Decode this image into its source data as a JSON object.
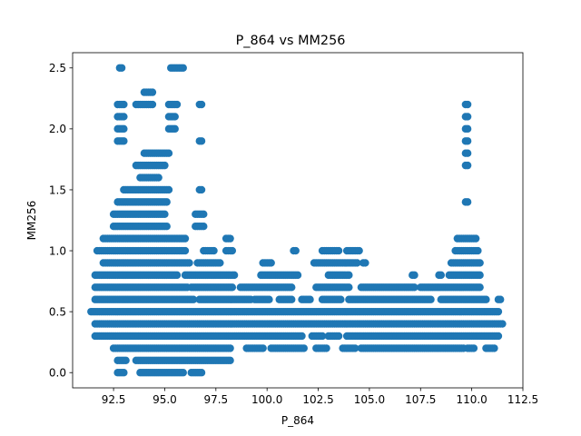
{
  "chart_data": {
    "type": "scatter",
    "title": "P_864 vs MM256",
    "xlabel": "P_864",
    "ylabel": "MM256",
    "xlim": [
      90.5,
      112.5
    ],
    "ylim": [
      -0.125,
      2.625
    ],
    "xticks": [
      92.5,
      95.0,
      97.5,
      100.0,
      102.5,
      105.0,
      107.5,
      110.0,
      112.5
    ],
    "xtick_labels": [
      "92.5",
      "95.0",
      "97.5",
      "100.0",
      "102.5",
      "105.0",
      "107.5",
      "110.0",
      "112.5"
    ],
    "yticks": [
      0.0,
      0.5,
      1.0,
      1.5,
      2.0,
      2.5
    ],
    "ytick_labels": [
      "0.0",
      "0.5",
      "1.0",
      "1.5",
      "2.0",
      "2.5"
    ],
    "grid": false,
    "marker_color": "#1f77b4",
    "x_step": 0.1,
    "bands": [
      {
        "y": 0.0,
        "ranges": [
          [
            92.7,
            93.0
          ],
          [
            93.8,
            95.9
          ],
          [
            96.3,
            96.8
          ]
        ]
      },
      {
        "y": 0.1,
        "ranges": [
          [
            92.7,
            93.1
          ],
          [
            93.6,
            98.2
          ]
        ]
      },
      {
        "y": 0.2,
        "ranges": [
          [
            92.5,
            98.2
          ],
          [
            99.0,
            99.8
          ],
          [
            100.2,
            101.8
          ],
          [
            102.4,
            102.9
          ],
          [
            103.7,
            104.3
          ],
          [
            104.6,
            109.6
          ],
          [
            109.8,
            110.1
          ],
          [
            110.7,
            111.1
          ]
        ]
      },
      {
        "y": 0.3,
        "ranges": [
          [
            91.6,
            101.7
          ],
          [
            102.2,
            102.7
          ],
          [
            103.0,
            103.5
          ],
          [
            103.9,
            111.3
          ]
        ]
      },
      {
        "y": 0.4,
        "ranges": [
          [
            91.6,
            111.5
          ]
        ]
      },
      {
        "y": 0.5,
        "ranges": [
          [
            91.4,
            111.3
          ]
        ]
      },
      {
        "y": 0.6,
        "ranges": [
          [
            91.6,
            96.4
          ],
          [
            96.7,
            99.2
          ],
          [
            99.4,
            100.1
          ],
          [
            100.6,
            101.2
          ],
          [
            101.7,
            102.1
          ],
          [
            102.7,
            103.6
          ],
          [
            104.0,
            108.0
          ],
          [
            108.5,
            110.7
          ],
          [
            111.3,
            111.4
          ]
        ]
      },
      {
        "y": 0.7,
        "ranges": [
          [
            91.6,
            96.1
          ],
          [
            96.3,
            98.3
          ],
          [
            98.7,
            101.2
          ],
          [
            102.4,
            104.0
          ],
          [
            104.6,
            107.2
          ],
          [
            107.5,
            110.4
          ]
        ]
      },
      {
        "y": 0.8,
        "ranges": [
          [
            91.6,
            95.6
          ],
          [
            96.0,
            98.4
          ],
          [
            99.7,
            101.5
          ],
          [
            103.0,
            104.0
          ],
          [
            107.1,
            107.2
          ],
          [
            108.4,
            108.5
          ],
          [
            108.9,
            110.4
          ]
        ]
      },
      {
        "y": 0.9,
        "ranges": [
          [
            92.0,
            96.2
          ],
          [
            96.6,
            97.7
          ],
          [
            99.8,
            100.2
          ],
          [
            102.3,
            104.4
          ],
          [
            104.7,
            104.8
          ],
          [
            109.0,
            110.4
          ]
        ]
      },
      {
        "y": 1.0,
        "ranges": [
          [
            91.7,
            96.0
          ],
          [
            96.9,
            97.4
          ],
          [
            98.0,
            98.3
          ],
          [
            101.3,
            101.4
          ],
          [
            102.7,
            103.5
          ],
          [
            103.9,
            104.5
          ],
          [
            109.2,
            110.3
          ]
        ]
      },
      {
        "y": 1.1,
        "ranges": [
          [
            92.0,
            96.0
          ],
          [
            98.0,
            98.2
          ],
          [
            109.3,
            110.2
          ]
        ]
      },
      {
        "y": 1.2,
        "ranges": [
          [
            92.5,
            95.1
          ],
          [
            96.5,
            96.9
          ]
        ]
      },
      {
        "y": 1.3,
        "ranges": [
          [
            92.5,
            95.0
          ],
          [
            96.5,
            96.9
          ]
        ]
      },
      {
        "y": 1.4,
        "ranges": [
          [
            92.7,
            95.1
          ],
          [
            109.7,
            109.8
          ]
        ]
      },
      {
        "y": 1.5,
        "ranges": [
          [
            93.0,
            95.2
          ],
          [
            96.7,
            96.8
          ]
        ]
      },
      {
        "y": 1.6,
        "ranges": [
          [
            93.8,
            94.7
          ]
        ]
      },
      {
        "y": 1.7,
        "ranges": [
          [
            93.6,
            95.0
          ],
          [
            109.7,
            109.8
          ]
        ]
      },
      {
        "y": 1.8,
        "ranges": [
          [
            94.0,
            95.2
          ],
          [
            109.7,
            109.8
          ]
        ]
      },
      {
        "y": 1.9,
        "ranges": [
          [
            92.7,
            93.0
          ],
          [
            96.7,
            96.8
          ],
          [
            109.7,
            109.8
          ]
        ]
      },
      {
        "y": 2.0,
        "ranges": [
          [
            92.7,
            93.0
          ],
          [
            95.2,
            95.5
          ],
          [
            109.7,
            109.8
          ]
        ]
      },
      {
        "y": 2.1,
        "ranges": [
          [
            92.7,
            93.0
          ],
          [
            95.2,
            95.5
          ],
          [
            109.7,
            109.8
          ]
        ]
      },
      {
        "y": 2.2,
        "ranges": [
          [
            92.7,
            93.0
          ],
          [
            93.6,
            94.4
          ],
          [
            95.2,
            95.6
          ],
          [
            96.7,
            96.8
          ],
          [
            109.7,
            109.8
          ]
        ]
      },
      {
        "y": 2.3,
        "ranges": [
          [
            94.0,
            94.4
          ]
        ]
      },
      {
        "y": 2.5,
        "ranges": [
          [
            92.8,
            92.9
          ],
          [
            95.3,
            95.9
          ]
        ]
      }
    ]
  }
}
